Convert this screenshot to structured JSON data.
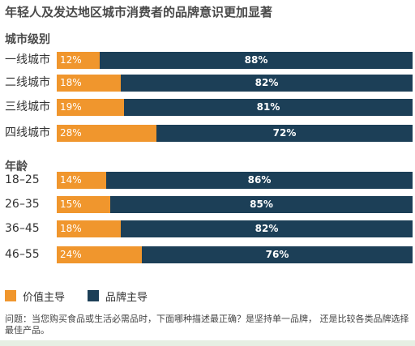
{
  "title": "年轻人及发达地区城市消费者的品牌意识更加显著",
  "colors": {
    "value_led": "#f0962d",
    "brand_led": "#1c3f57"
  },
  "chart_data": {
    "type": "bar",
    "orientation": "horizontal",
    "stacked": true,
    "percent": true,
    "title": "年轻人及发达地区城市消费者的品牌意识更加显著",
    "groups": [
      {
        "name": "城市级别",
        "categories": [
          "一线城市",
          "二线城市",
          "三线城市",
          "四线城市"
        ],
        "series": [
          {
            "name": "价值主导",
            "values": [
              12,
              18,
              19,
              28
            ]
          },
          {
            "name": "品牌主导",
            "values": [
              88,
              82,
              81,
              72
            ]
          }
        ]
      },
      {
        "name": "年龄",
        "categories": [
          "18–25",
          "26–35",
          "36–45",
          "46–55"
        ],
        "series": [
          {
            "name": "价值主导",
            "values": [
              14,
              15,
              18,
              24
            ]
          },
          {
            "name": "品牌主导",
            "values": [
              86,
              85,
              82,
              76
            ]
          }
        ]
      }
    ],
    "legend": [
      "价值主导",
      "品牌主导"
    ],
    "legend_position": "bottom-left"
  },
  "note": "问题：当您购买食品或生活必需品时，下面哪种描述最正确？是坚持单一品牌， 还是比较各类品牌选择最佳产品。"
}
